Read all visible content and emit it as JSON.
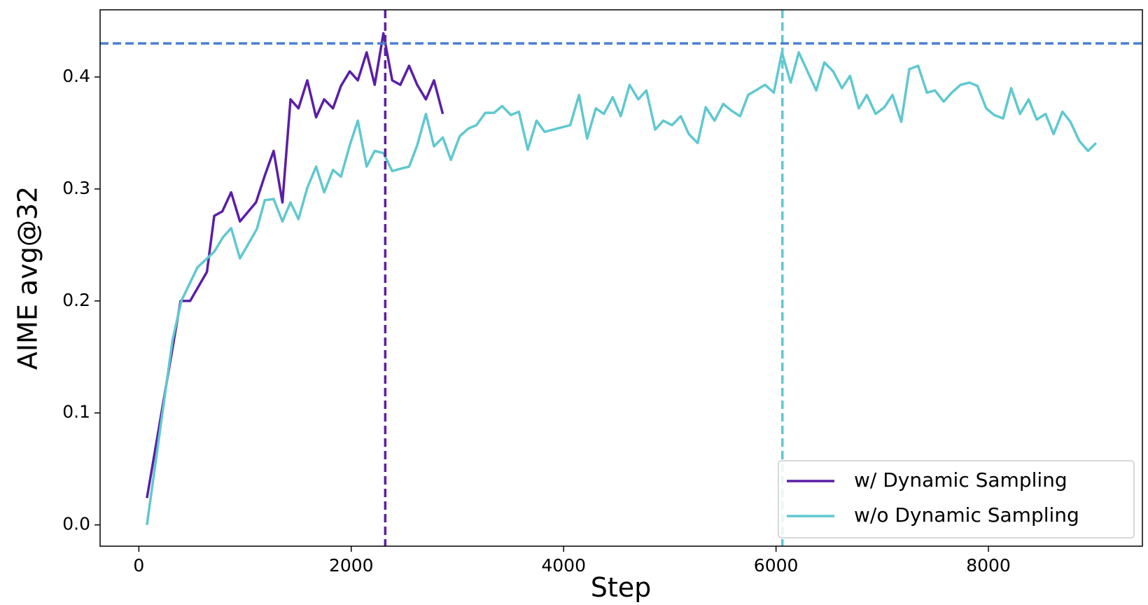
{
  "chart_data": {
    "type": "line",
    "xlabel": "Step",
    "ylabel": "AIME avg@32",
    "xlim": [
      -365,
      9450
    ],
    "ylim": [
      -0.019,
      0.46
    ],
    "xticks": [
      0,
      2000,
      4000,
      6000,
      8000
    ],
    "yticks": [
      {
        "value": 0,
        "label": "0.0"
      },
      0.1,
      0.2,
      0.3,
      0.4
    ],
    "legend": "lower right",
    "hlines": [
      {
        "value": 0.43,
        "color": "#4a7fd4"
      }
    ],
    "vlines": [
      {
        "value": 2320,
        "color": "#5b1ea6"
      },
      {
        "value": 6060,
        "color": "#5fc8d0"
      }
    ],
    "series": [
      {
        "name": "w/ Dynamic Sampling",
        "color": "#5b1ea6",
        "x": [
          76,
          393,
          483,
          641,
          710,
          786,
          869,
          952,
          1103,
          1186,
          1269,
          1352,
          1428,
          1503,
          1586,
          1669,
          1745,
          1828,
          1903,
          1986,
          2062,
          2145,
          2221,
          2303,
          2386,
          2462,
          2545,
          2621,
          2703,
          2779,
          2862
        ],
        "values": [
          0.024,
          0.2,
          0.2,
          0.226,
          0.276,
          0.28,
          0.297,
          0.271,
          0.288,
          0.312,
          0.334,
          0.288,
          0.38,
          0.372,
          0.397,
          0.364,
          0.38,
          0.372,
          0.392,
          0.405,
          0.397,
          0.422,
          0.393,
          0.439,
          0.397,
          0.393,
          0.41,
          0.393,
          0.38,
          0.397,
          0.367
        ]
      },
      {
        "name": "w/o Dynamic Sampling",
        "color": "#5fc8d0",
        "x": [
          76,
          317,
          400,
          552,
          710,
          793,
          869,
          952,
          1110,
          1186,
          1269,
          1352,
          1428,
          1503,
          1586,
          1669,
          1745,
          1828,
          1903,
          1986,
          2062,
          2145,
          2221,
          2303,
          2386,
          2462,
          2545,
          2621,
          2703,
          2779,
          2862,
          2938,
          3021,
          3103,
          3179,
          3262,
          3345,
          3421,
          3503,
          3579,
          3662,
          3745,
          3821,
          4062,
          4145,
          4221,
          4303,
          4379,
          4462,
          4538,
          4621,
          4703,
          4779,
          4862,
          4938,
          5021,
          5103,
          5179,
          5262,
          5338,
          5421,
          5503,
          5579,
          5662,
          5738,
          5897,
          5979,
          6055,
          6138,
          6214,
          6379,
          6455,
          6538,
          6621,
          6697,
          6779,
          6855,
          6938,
          7021,
          7097,
          7179,
          7255,
          7338,
          7421,
          7497,
          7579,
          7655,
          7738,
          7821,
          7897,
          7979,
          8055,
          8138,
          8214,
          8297,
          8379,
          8455,
          8538,
          8614,
          8697,
          8772,
          8855,
          8938,
          9014
        ],
        "values": [
          0.0,
          0.165,
          0.2,
          0.23,
          0.244,
          0.257,
          0.265,
          0.238,
          0.264,
          0.29,
          0.291,
          0.271,
          0.288,
          0.273,
          0.301,
          0.32,
          0.297,
          0.317,
          0.311,
          0.339,
          0.361,
          0.32,
          0.334,
          0.332,
          0.316,
          0.318,
          0.32,
          0.339,
          0.367,
          0.338,
          0.346,
          0.326,
          0.347,
          0.354,
          0.357,
          0.368,
          0.368,
          0.374,
          0.366,
          0.369,
          0.335,
          0.361,
          0.351,
          0.357,
          0.384,
          0.345,
          0.372,
          0.367,
          0.382,
          0.365,
          0.393,
          0.38,
          0.388,
          0.353,
          0.361,
          0.357,
          0.365,
          0.349,
          0.341,
          0.373,
          0.361,
          0.376,
          0.37,
          0.365,
          0.384,
          0.393,
          0.386,
          0.422,
          0.395,
          0.422,
          0.388,
          0.413,
          0.405,
          0.39,
          0.401,
          0.372,
          0.384,
          0.367,
          0.373,
          0.384,
          0.36,
          0.407,
          0.41,
          0.386,
          0.388,
          0.378,
          0.386,
          0.393,
          0.395,
          0.392,
          0.372,
          0.366,
          0.363,
          0.39,
          0.367,
          0.38,
          0.362,
          0.367,
          0.349,
          0.369,
          0.36,
          0.343,
          0.334,
          0.341
        ]
      }
    ]
  }
}
